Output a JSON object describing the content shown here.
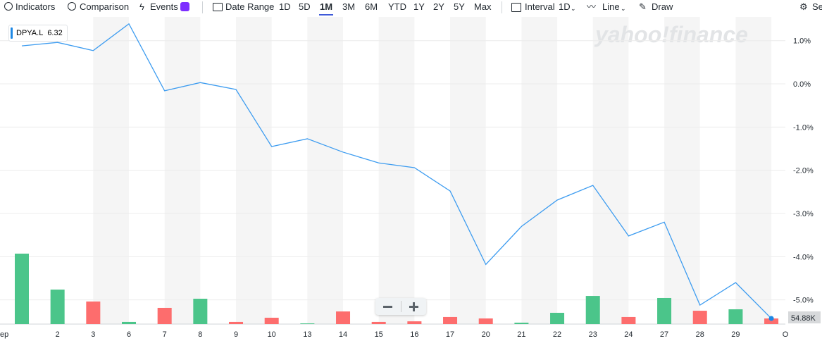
{
  "toolbar": {
    "indicators": "Indicators",
    "comparison": "Comparison",
    "events": "Events",
    "date_range": "Date Range",
    "range_buttons": [
      "1D",
      "5D",
      "1M",
      "3M",
      "6M",
      "YTD",
      "1Y",
      "2Y",
      "5Y",
      "Max"
    ],
    "interval": "Interval",
    "interval_value": "1D",
    "chart_type": "Line",
    "draw": "Draw",
    "settings": "Se"
  },
  "watermark": "yahoo!finance",
  "chart_data": {
    "type": "line",
    "last_price": 6.32,
    "categories": [
      "ep",
      "2",
      "3",
      "6",
      "7",
      "8",
      "9",
      "10",
      "13",
      "14",
      "15",
      "16",
      "17",
      "20",
      "21",
      "22",
      "23",
      "24",
      "27",
      "28",
      "29",
      "O"
    ],
    "series": [
      {
        "name": "DPYA.L",
        "color": "#3d9cf0",
        "values": [
          0.88,
          0.96,
          0.77,
          1.39,
          -0.16,
          0.03,
          -0.13,
          -1.45,
          -1.27,
          -1.58,
          -1.83,
          -1.94,
          -2.48,
          -4.18,
          -3.3,
          -2.69,
          -2.35,
          -3.52,
          -3.2,
          -5.12,
          -4.6,
          -5.43
        ]
      }
    ],
    "volume": {
      "values": [
        686000,
        336000,
        220000,
        21000,
        158000,
        247000,
        21000,
        62000,
        7000,
        123000,
        21000,
        27000,
        69000,
        55000,
        14000,
        110000,
        274000,
        69000,
        254000,
        130000,
        144000,
        54880
      ],
      "colors": [
        "#4bc58a",
        "#4bc58a",
        "#fd6d6d",
        "#4bc58a",
        "#fd6d6d",
        "#4bc58a",
        "#fd6d6d",
        "#fd6d6d",
        "#4bc58a",
        "#fd6d6d",
        "#fd6d6d",
        "#fd6d6d",
        "#fd6d6d",
        "#fd6d6d",
        "#4bc58a",
        "#4bc58a",
        "#4bc58a",
        "#fd6d6d",
        "#4bc58a",
        "#fd6d6d",
        "#4bc58a",
        "#fd6d6d"
      ],
      "last_label": "54.88K"
    },
    "ylim": [
      -5.56,
      1.55
    ],
    "yticks": [
      {
        "value": 1,
        "label": "1.0%"
      },
      {
        "value": 0,
        "label": "0.0%"
      },
      {
        "value": -1,
        "label": "-1.0%"
      },
      {
        "value": -2,
        "label": "-2.0%"
      },
      {
        "value": -3,
        "label": "-3.0%"
      },
      {
        "value": -4,
        "label": "-4.0%"
      },
      {
        "value": -5,
        "label": "-5.0%"
      }
    ],
    "grid": true
  }
}
